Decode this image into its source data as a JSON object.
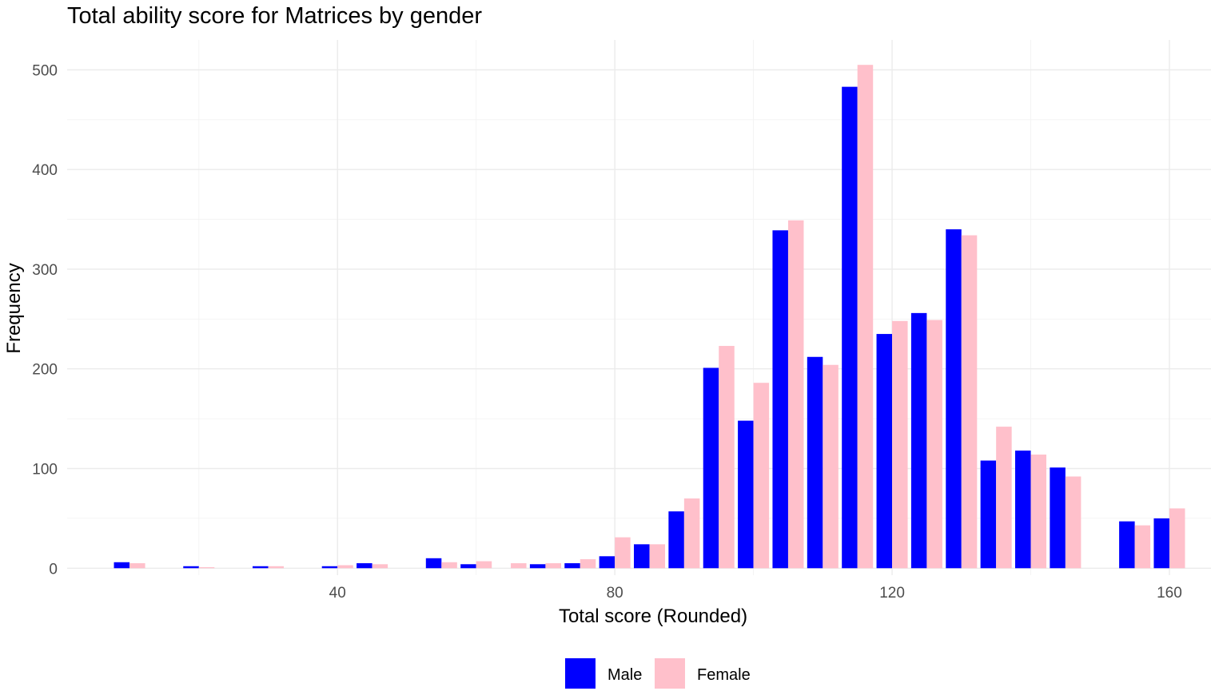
{
  "chart_data": {
    "type": "bar",
    "title": "Total ability score for Matrices by gender",
    "xlabel": "Total score (Rounded)",
    "ylabel": "Frequency",
    "xlim": [
      1,
      166
    ],
    "ylim": [
      -7,
      530
    ],
    "x_ticks": [
      40,
      80,
      120,
      160
    ],
    "y_ticks": [
      0,
      100,
      200,
      300,
      400,
      500
    ],
    "bin_width": 5,
    "bin_centers": [
      10,
      20,
      30,
      40,
      45,
      55,
      60,
      65,
      70,
      75,
      80,
      85,
      90,
      95,
      100,
      105,
      110,
      115,
      120,
      125,
      130,
      135,
      140,
      145,
      155,
      160
    ],
    "series": [
      {
        "name": "Male",
        "color": "#0000FF",
        "values": [
          6,
          2,
          2,
          2,
          5,
          10,
          4,
          0,
          4,
          5,
          12,
          24,
          57,
          201,
          148,
          339,
          212,
          483,
          235,
          256,
          340,
          108,
          118,
          101,
          47,
          50
        ]
      },
      {
        "name": "Female",
        "color": "#FFC0CB",
        "values": [
          5,
          1,
          2,
          3,
          4,
          6,
          7,
          5,
          5,
          9,
          31,
          24,
          70,
          223,
          186,
          349,
          204,
          505,
          248,
          249,
          334,
          142,
          114,
          92,
          43,
          60
        ]
      }
    ],
    "grid": true,
    "legend_position": "bottom"
  }
}
